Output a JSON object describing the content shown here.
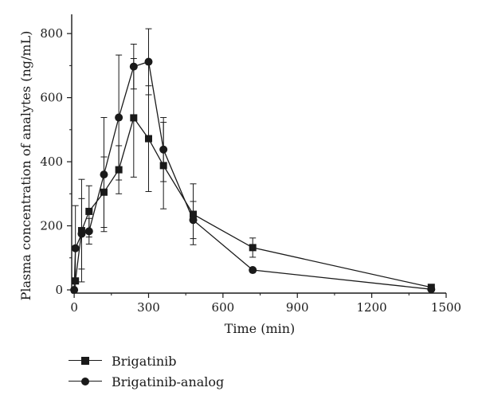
{
  "chart_data": {
    "type": "line",
    "xlabel": "Time (min)",
    "ylabel": "Plasma concentration of analytes (ng/mL)",
    "xlim": [
      -10,
      1500
    ],
    "ylim": [
      -10,
      860
    ],
    "xticks": [
      0,
      300,
      600,
      900,
      1200,
      1500
    ],
    "yticks": [
      0,
      200,
      400,
      600,
      800
    ],
    "grid": false,
    "legend_position": "bottom-left",
    "series": [
      {
        "name": "Brigatinib",
        "marker": "square",
        "x": [
          5,
          30,
          60,
          120,
          180,
          240,
          300,
          360,
          480,
          720,
          1440
        ],
        "y": [
          28,
          185,
          245,
          305,
          375,
          537,
          472,
          388,
          236,
          132,
          8
        ],
        "err": [
          235,
          160,
          80,
          110,
          75,
          185,
          165,
          135,
          95,
          30,
          5
        ]
      },
      {
        "name": "Brigatinib-analog",
        "marker": "circle",
        "x": [
          0,
          5,
          30,
          60,
          120,
          180,
          240,
          300,
          360,
          480,
          720,
          1440
        ],
        "y": [
          0,
          130,
          175,
          183,
          360,
          538,
          697,
          712,
          438,
          218,
          62,
          2
        ],
        "err": [
          0,
          0,
          110,
          40,
          178,
          195,
          70,
          103,
          100,
          58,
          0,
          0
        ]
      }
    ]
  }
}
